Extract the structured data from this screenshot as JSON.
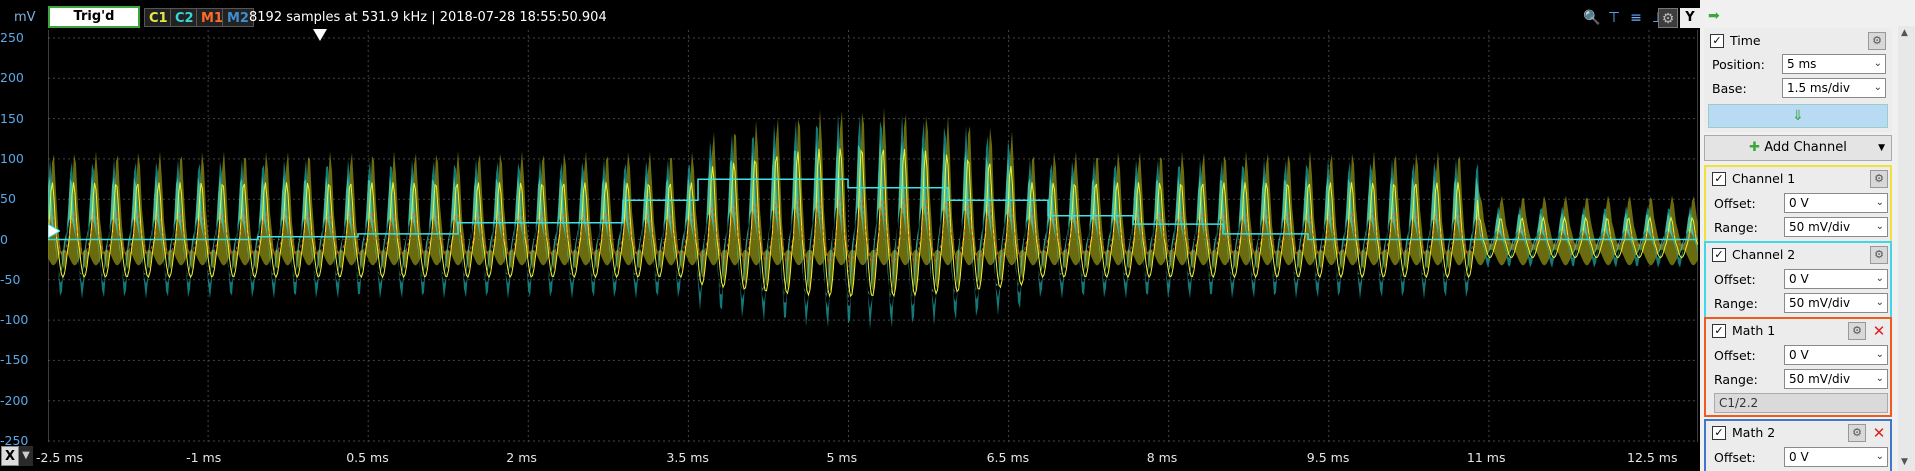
{
  "toolbar": {
    "trigger_status": "Trig'd",
    "channels": [
      {
        "label": "C1",
        "color": "#e8e84a",
        "bg": "#222"
      },
      {
        "label": "C2",
        "color": "#3ad6d6",
        "bg": "#222"
      },
      {
        "label": "M1",
        "color": "#ff6b2b",
        "bg": "#222"
      },
      {
        "label": "M2",
        "color": "#3e8ed0",
        "bg": "#222"
      }
    ],
    "status_text": "8192 samples at 531.9 kHz | 2018-07-28 18:55:50.904",
    "y_button": "Y"
  },
  "plot": {
    "y_unit": "mV",
    "y_ticks": [
      "250",
      "200",
      "150",
      "100",
      "50",
      "0",
      "-50",
      "-100",
      "-150",
      "-200",
      "-250"
    ],
    "x_ticks": [
      "-2.5 ms",
      "-1 ms",
      "0.5 ms",
      "2 ms",
      "3.5 ms",
      "5 ms",
      "6.5 ms",
      "8 ms",
      "9.5 ms",
      "11 ms",
      "12.5 ms"
    ],
    "x_button": "X",
    "colors": {
      "c1": "#8e8e14",
      "c1_line": "#f2f230",
      "c2": "#1aa0a0",
      "c2_light": "#58d8b0",
      "m1": "#ff5a20",
      "step": "#3ee0e0"
    }
  },
  "panel": {
    "time": {
      "title": "Time",
      "position_label": "Position:",
      "position_value": "5 ms",
      "base_label": "Base:",
      "base_value": "1.5 ms/div"
    },
    "add_channel": "Add Channel",
    "channel1": {
      "title": "Channel 1",
      "offset_label": "Offset:",
      "offset_value": "0 V",
      "range_label": "Range:",
      "range_value": "50 mV/div",
      "border": "#f0e040"
    },
    "channel2": {
      "title": "Channel 2",
      "offset_label": "Offset:",
      "offset_value": "0 V",
      "range_label": "Range:",
      "range_value": "50 mV/div",
      "border": "#40d8e8"
    },
    "math1": {
      "title": "Math 1",
      "offset_label": "Offset:",
      "offset_value": "0 V",
      "range_label": "Range:",
      "range_value": "50 mV/div",
      "expression": "C1/2.2",
      "border": "#f05a20"
    },
    "math2": {
      "title": "Math 2",
      "offset_label": "Offset:",
      "offset_value": "0 V",
      "border": "#3e78c8"
    }
  }
}
